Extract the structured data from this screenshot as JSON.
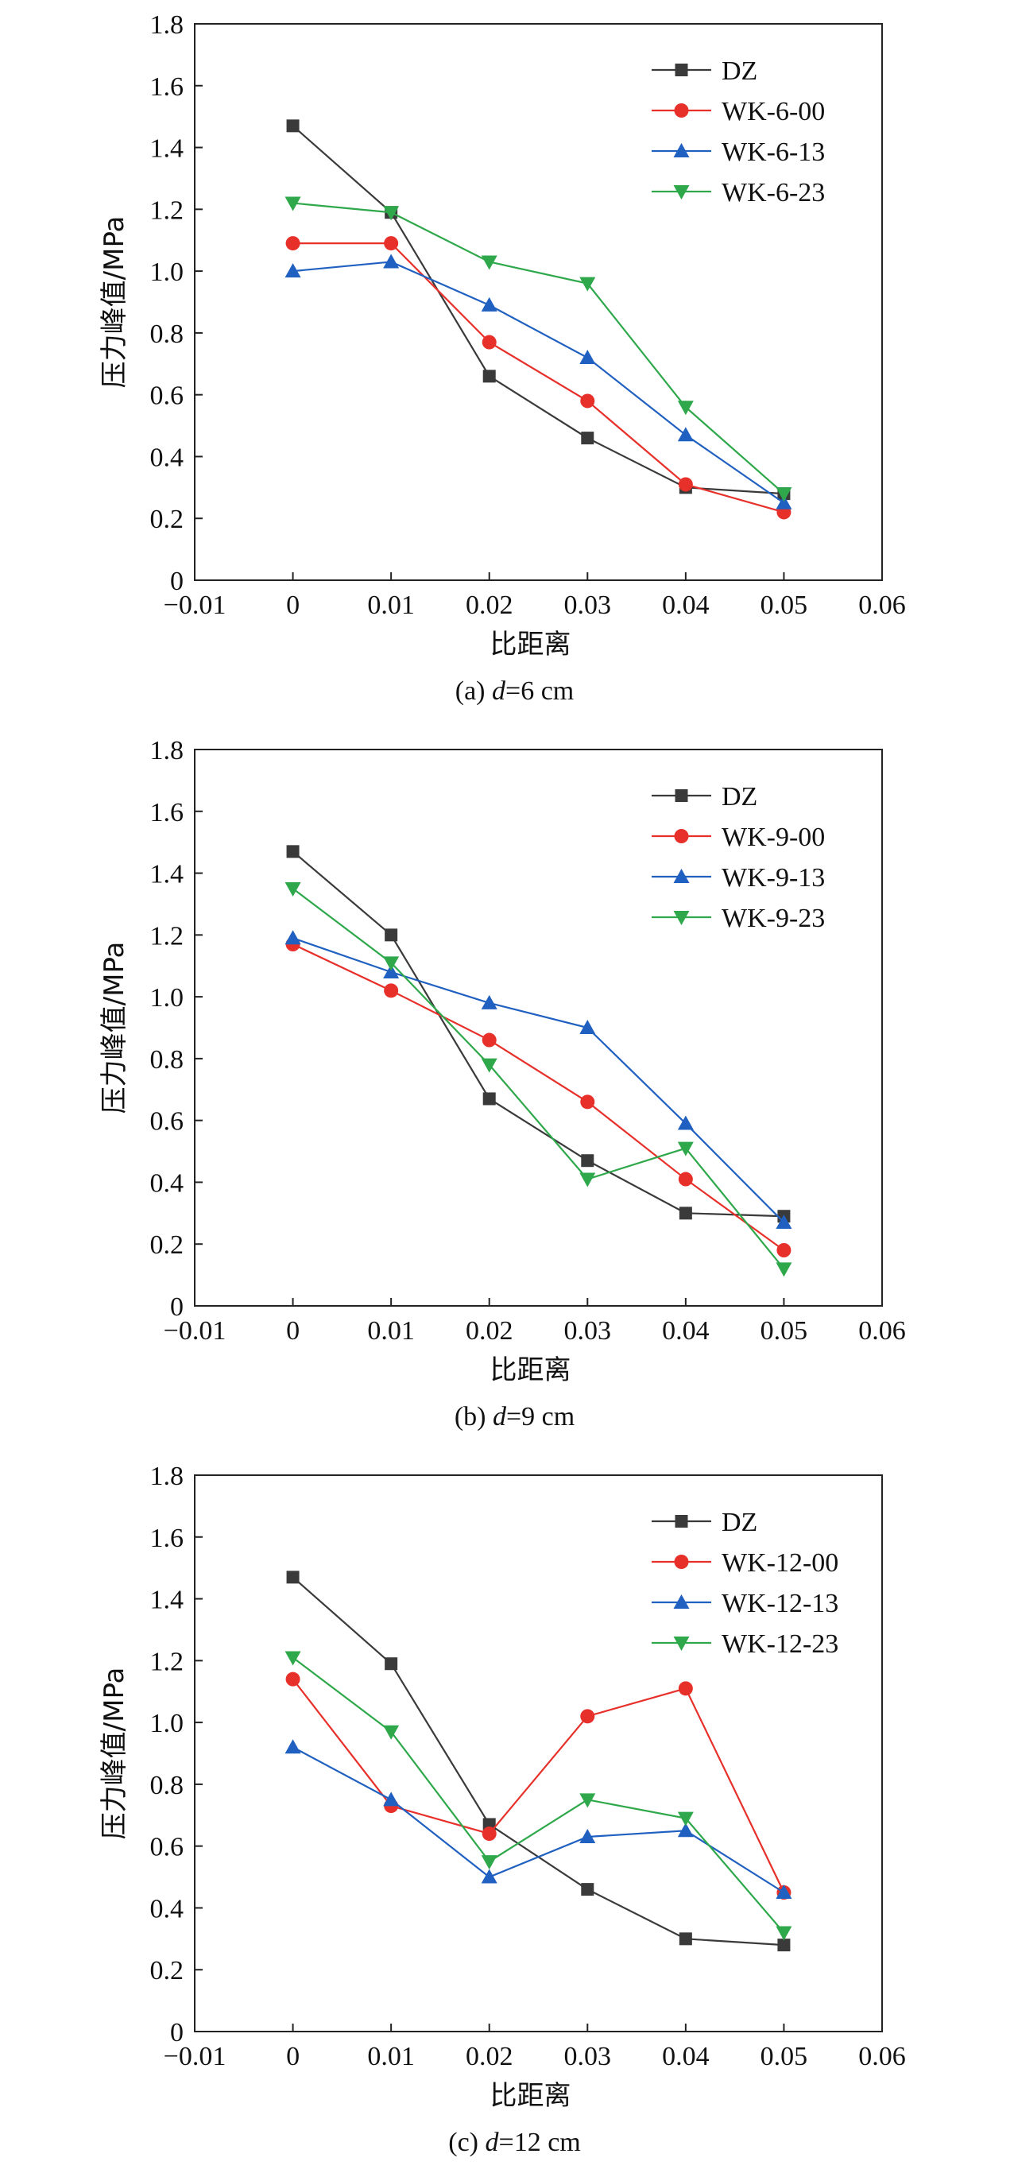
{
  "chart_data": [
    {
      "type": "line",
      "caption": {
        "prefix": "(a) ",
        "var": "d",
        "suffix": "=6 cm"
      },
      "xlabel": "比距离",
      "ylabel": "压力峰值/MPa",
      "xlim": [
        -0.01,
        0.06
      ],
      "ylim": [
        0,
        1.8
      ],
      "xticks": [
        "−0.01",
        "0",
        "0.01",
        "0.02",
        "0.03",
        "0.04",
        "0.05",
        "0.06"
      ],
      "yticks": [
        "0",
        "0.2",
        "0.4",
        "0.6",
        "0.8",
        "1.0",
        "1.2",
        "1.4",
        "1.6",
        "1.8"
      ],
      "legend_position": "top-right",
      "x": [
        0,
        0.01,
        0.02,
        0.03,
        0.04,
        0.05
      ],
      "series": [
        {
          "name": "DZ",
          "color": "#3a3a3a",
          "marker": "square",
          "values": [
            1.47,
            1.19,
            0.66,
            0.46,
            0.3,
            0.28
          ]
        },
        {
          "name": "WK-6-00",
          "color": "#e8302a",
          "marker": "diamond",
          "values": [
            1.09,
            1.09,
            0.77,
            0.58,
            0.31,
            0.22
          ]
        },
        {
          "name": "WK-6-13",
          "color": "#2060c0",
          "marker": "triangle-up",
          "values": [
            1.0,
            1.03,
            0.89,
            0.72,
            0.47,
            0.25
          ]
        },
        {
          "name": "WK-6-23",
          "color": "#2ea84a",
          "marker": "triangle-down",
          "values": [
            1.22,
            1.19,
            1.03,
            0.96,
            0.56,
            0.28
          ]
        }
      ]
    },
    {
      "type": "line",
      "caption": {
        "prefix": "(b) ",
        "var": "d",
        "suffix": "=9 cm"
      },
      "xlabel": "比距离",
      "ylabel": "压力峰值/MPa",
      "xlim": [
        -0.01,
        0.06
      ],
      "ylim": [
        0,
        1.8
      ],
      "xticks": [
        "−0.01",
        "0",
        "0.01",
        "0.02",
        "0.03",
        "0.04",
        "0.05",
        "0.06"
      ],
      "yticks": [
        "0",
        "0.2",
        "0.4",
        "0.6",
        "0.8",
        "1.0",
        "1.2",
        "1.4",
        "1.6",
        "1.8"
      ],
      "legend_position": "top-right",
      "x": [
        0,
        0.01,
        0.02,
        0.03,
        0.04,
        0.05
      ],
      "series": [
        {
          "name": "DZ",
          "color": "#3a3a3a",
          "marker": "square",
          "values": [
            1.47,
            1.2,
            0.67,
            0.47,
            0.3,
            0.29
          ]
        },
        {
          "name": "WK-9-00",
          "color": "#e8302a",
          "marker": "diamond",
          "values": [
            1.17,
            1.02,
            0.86,
            0.66,
            0.41,
            0.18
          ]
        },
        {
          "name": "WK-9-13",
          "color": "#2060c0",
          "marker": "triangle-up",
          "values": [
            1.19,
            1.08,
            0.98,
            0.9,
            0.59,
            0.27
          ]
        },
        {
          "name": "WK-9-23",
          "color": "#2ea84a",
          "marker": "triangle-down",
          "values": [
            1.35,
            1.11,
            0.78,
            0.41,
            0.51,
            0.12
          ]
        }
      ]
    },
    {
      "type": "line",
      "caption": {
        "prefix": "(c) ",
        "var": "d",
        "suffix": "=12 cm"
      },
      "xlabel": "比距离",
      "ylabel": "压力峰值/MPa",
      "xlim": [
        -0.01,
        0.06
      ],
      "ylim": [
        0,
        1.8
      ],
      "xticks": [
        "−0.01",
        "0",
        "0.01",
        "0.02",
        "0.03",
        "0.04",
        "0.05",
        "0.06"
      ],
      "yticks": [
        "0",
        "0.2",
        "0.4",
        "0.6",
        "0.8",
        "1.0",
        "1.2",
        "1.4",
        "1.6",
        "1.8"
      ],
      "legend_position": "top-right",
      "x": [
        0,
        0.01,
        0.02,
        0.03,
        0.04,
        0.05
      ],
      "series": [
        {
          "name": "DZ",
          "color": "#3a3a3a",
          "marker": "square",
          "values": [
            1.47,
            1.19,
            0.67,
            0.46,
            0.3,
            0.28
          ]
        },
        {
          "name": "WK-12-00",
          "color": "#e8302a",
          "marker": "diamond",
          "values": [
            1.14,
            0.73,
            0.64,
            1.02,
            1.11,
            0.45
          ]
        },
        {
          "name": "WK-12-13",
          "color": "#2060c0",
          "marker": "triangle-up",
          "values": [
            0.92,
            0.75,
            0.5,
            0.63,
            0.65,
            0.45
          ]
        },
        {
          "name": "WK-12-23",
          "color": "#2ea84a",
          "marker": "triangle-down",
          "values": [
            1.21,
            0.97,
            0.55,
            0.75,
            0.69,
            0.32
          ]
        }
      ]
    }
  ]
}
